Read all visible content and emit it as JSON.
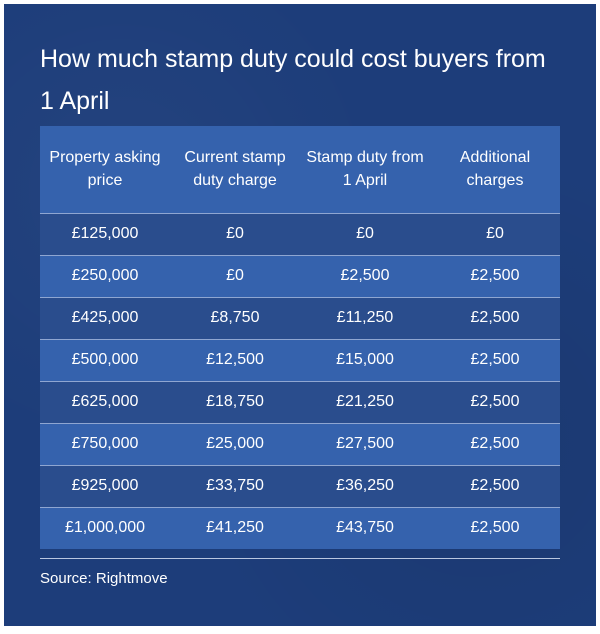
{
  "chart_data": {
    "type": "table",
    "title": "How much stamp duty could cost buyers from 1 April",
    "columns": [
      "Property asking price",
      "Current stamp duty charge",
      "Stamp duty from 1 April",
      "Additional charges"
    ],
    "rows": [
      [
        "£125,000",
        "£0",
        "£0",
        "£0"
      ],
      [
        "£250,000",
        "£0",
        "£2,500",
        "£2,500"
      ],
      [
        "£425,000",
        "£8,750",
        "£11,250",
        "£2,500"
      ],
      [
        "£500,000",
        "£12,500",
        "£15,000",
        "£2,500"
      ],
      [
        "£625,000",
        "£18,750",
        "£21,250",
        "£2,500"
      ],
      [
        "£750,000",
        "£25,000",
        "£27,500",
        "£2,500"
      ],
      [
        "£925,000",
        "£33,750",
        "£36,250",
        "£2,500"
      ],
      [
        "£1,000,000",
        "£41,250",
        "£43,750",
        "£2,500"
      ]
    ],
    "source": "Source: Rightmove"
  },
  "colors": {
    "background": "#1d3d7a",
    "header_row": "#3562ad",
    "row_dark": "#2a4d8d",
    "row_light": "#3562ad",
    "text": "#ffffff"
  }
}
